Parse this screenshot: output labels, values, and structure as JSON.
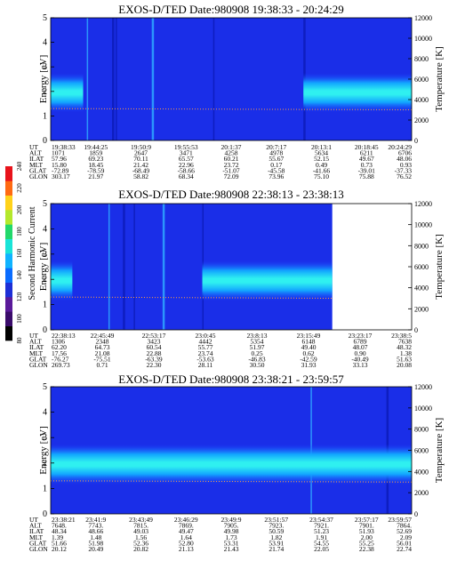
{
  "colorbar": {
    "label": "Second Harmonic Current",
    "ticks": [
      "80",
      "100",
      "120",
      "140",
      "160",
      "180",
      "200",
      "220",
      "240"
    ],
    "colors": [
      "#000000",
      "#3a0b6b",
      "#5a1a9a",
      "#1d2fd6",
      "#0a6cff",
      "#10b3ff",
      "#19e4d8",
      "#22d86b",
      "#b4e82c",
      "#ffd21a",
      "#ff6a12",
      "#e8131b"
    ]
  },
  "chart_data": [
    {
      "type": "heatmap",
      "title": "EXOS-D/TED   Date:980908   19:38:33 - 20:24:29",
      "ylabel": "Energy [eV]",
      "y2label": "Temperature [K]",
      "ylim": [
        0,
        5
      ],
      "y2lim": [
        0,
        12000
      ],
      "yticks": [
        "0",
        "1",
        "2",
        "3",
        "4",
        "5"
      ],
      "y2ticks": [
        "0",
        "2000",
        "4000",
        "6000",
        "8000",
        "10000",
        "12000"
      ],
      "row_labels": [
        "UT",
        "ALT",
        "ILAT",
        "MLT",
        "GLAT",
        "GLON"
      ],
      "columns": [
        [
          "19:38:33",
          "1071",
          "57.96",
          "15.80",
          "-72.89",
          "303.17"
        ],
        [
          "19:44:25",
          "1859",
          "69.23",
          "18.45",
          "-78.59",
          "21.97"
        ],
        [
          "19:50:9",
          "2647",
          "70.11",
          "21.42",
          "-68.49",
          "58.82"
        ],
        [
          "19:55:53",
          "3471",
          "65.57",
          "22.96",
          "-58.66",
          "68.34"
        ],
        [
          "20:1:37",
          "4258",
          "60.21",
          "23.72",
          "-51.07",
          "72.09"
        ],
        [
          "20:7:17",
          "4978",
          "55.67",
          "0.17",
          "-45.58",
          "73.96"
        ],
        [
          "20:13:1",
          "5634",
          "52.15",
          "0.49",
          "-41.66",
          "75.10"
        ],
        [
          "20:18:45",
          "6211",
          "49.67",
          "0.73",
          "-39.01",
          "75.88"
        ],
        [
          "20:24:29",
          "6706",
          "48.06",
          "0.93",
          "-37.33",
          "76.52"
        ]
      ]
    },
    {
      "type": "heatmap",
      "title": "EXOS-D/TED   Date:980908   22:38:13 - 23:38:13",
      "ylabel": "Energy [eV]",
      "y2label": "Temperature [K]",
      "ylim": [
        0,
        5
      ],
      "y2lim": [
        0,
        12000
      ],
      "yticks": [
        "0",
        "1",
        "2",
        "3",
        "4",
        "5"
      ],
      "y2ticks": [
        "0",
        "2000",
        "4000",
        "6000",
        "8000",
        "10000",
        "12000"
      ],
      "row_labels": [
        "UT",
        "ALT",
        "ILAT",
        "MLT",
        "GLAT",
        "GLON"
      ],
      "columns": [
        [
          "22:38:13",
          "1306",
          "62.20",
          "17.56",
          "-76.27",
          "269.73"
        ],
        [
          "22:45:49",
          "2348",
          "64.73",
          "21.08",
          "-75.51",
          "0.71"
        ],
        [
          "22:53:17",
          "3423",
          "60.54",
          "22.88",
          "-63.39",
          "22.30"
        ],
        [
          "23:0:45",
          "4442",
          "55.77",
          "23.74",
          "-53.63",
          "28.11"
        ],
        [
          "23:8:13",
          "5354",
          "51.97",
          "0.25",
          "-46.83",
          "30.50"
        ],
        [
          "23:15:49",
          "6148",
          "49.40",
          "0.62",
          "-42.59",
          "31.93"
        ],
        [
          "23:23:17",
          "6789",
          "48.07",
          "0.90",
          "-40.49",
          "33.13"
        ],
        [
          "23:38:5",
          "7638",
          "48.32",
          "1.38",
          "51.63",
          "20.08"
        ]
      ]
    },
    {
      "type": "heatmap",
      "title": "EXOS-D/TED   Date:980908   23:38:21 - 23:59:57",
      "ylabel": "Energy [eV]",
      "y2label": "Temperature [K]",
      "ylim": [
        0,
        5
      ],
      "y2lim": [
        0,
        12000
      ],
      "yticks": [
        "0",
        "1",
        "2",
        "3",
        "4",
        "5"
      ],
      "y2ticks": [
        "0",
        "2000",
        "4000",
        "6000",
        "8000",
        "10000",
        "12000"
      ],
      "row_labels": [
        "UT",
        "ALT",
        "ILAT",
        "MLT",
        "GLAT",
        "GLON"
      ],
      "columns": [
        [
          "23:38:21",
          "7648.",
          "48.34",
          "1.39",
          "51.66",
          "20.12"
        ],
        [
          "23:41:9",
          "7743.",
          "48.66",
          "1.48",
          "51.98",
          "20.49"
        ],
        [
          "23:43:49",
          "7815.",
          "49.03",
          "1.56",
          "52.36",
          "20.82"
        ],
        [
          "23:46:29",
          "7869.",
          "49.47",
          "1.64",
          "52.80",
          "21.13"
        ],
        [
          "23:49:9",
          "7905.",
          "49.98",
          "1.73",
          "53.31",
          "21.43"
        ],
        [
          "23:51:57",
          "7923.",
          "50.59",
          "1.82",
          "53.91",
          "21.74"
        ],
        [
          "23:54:37",
          "7921.",
          "51.23",
          "1.91",
          "54.55",
          "22.05"
        ],
        [
          "23:57:17",
          "7901.",
          "51.93",
          "2.00",
          "55.25",
          "22.38"
        ],
        [
          "23:59:57",
          "7864.",
          "52.69",
          "2.09",
          "56.01",
          "22.74"
        ]
      ]
    }
  ]
}
